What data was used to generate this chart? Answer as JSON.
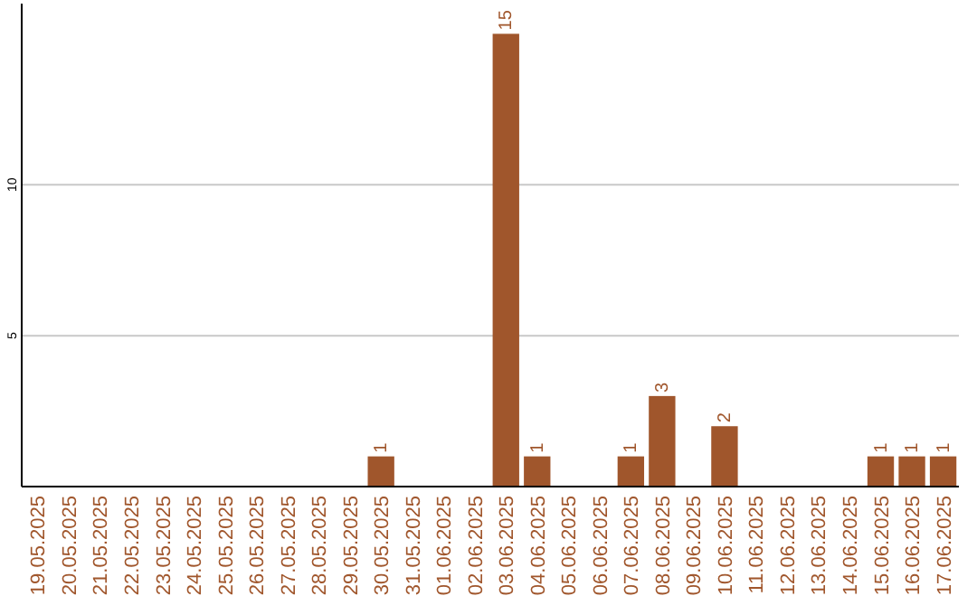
{
  "chart_data": {
    "type": "bar",
    "categories": [
      "19.05.2025",
      "20.05.2025",
      "21.05.2025",
      "22.05.2025",
      "23.05.2025",
      "24.05.2025",
      "25.05.2025",
      "26.05.2025",
      "27.05.2025",
      "28.05.2025",
      "29.05.2025",
      "30.05.2025",
      "31.05.2025",
      "01.06.2025",
      "02.06.2025",
      "03.06.2025",
      "04.06.2025",
      "05.06.2025",
      "06.06.2025",
      "07.06.2025",
      "08.06.2025",
      "09.06.2025",
      "10.06.2025",
      "11.06.2025",
      "12.06.2025",
      "13.06.2025",
      "14.06.2025",
      "15.06.2025",
      "16.06.2025",
      "17.06.2025"
    ],
    "values": [
      0,
      0,
      0,
      0,
      0,
      0,
      0,
      0,
      0,
      0,
      0,
      1,
      0,
      0,
      0,
      15,
      1,
      0,
      0,
      1,
      3,
      0,
      2,
      0,
      0,
      0,
      0,
      1,
      1,
      1
    ],
    "value_labels": [
      null,
      null,
      null,
      null,
      null,
      null,
      null,
      null,
      null,
      null,
      null,
      "1",
      null,
      null,
      null,
      "15",
      "1",
      null,
      null,
      "1",
      "3",
      null,
      "2",
      null,
      null,
      null,
      null,
      "1",
      "1",
      "1"
    ],
    "color": "#a0562c",
    "ylim": [
      0,
      16
    ],
    "yticks": [
      5,
      10
    ],
    "grid": "y"
  }
}
